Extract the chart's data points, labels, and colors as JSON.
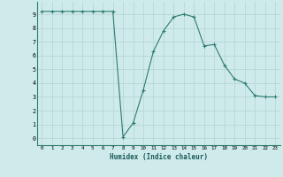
{
  "x": [
    0,
    1,
    2,
    3,
    4,
    5,
    6,
    7,
    8,
    9,
    10,
    11,
    12,
    13,
    14,
    15,
    16,
    17,
    18,
    19,
    20,
    21,
    22,
    23
  ],
  "y": [
    9.2,
    9.2,
    9.2,
    9.2,
    9.2,
    9.2,
    9.2,
    9.2,
    0.1,
    1.1,
    3.5,
    6.3,
    7.8,
    8.8,
    9.0,
    8.8,
    6.7,
    6.8,
    5.3,
    4.3,
    4.0,
    3.1,
    3.0,
    3.0
  ],
  "line_color": "#2e7d6e",
  "marker": "+",
  "marker_size": 3,
  "bg_color": "#ceeaea",
  "grid_color": "#b8d8d8",
  "xlabel": "Humidex (Indice chaleur)",
  "xlim": [
    -0.5,
    23.5
  ],
  "ylim": [
    -0.5,
    9.9
  ],
  "xtick_labels": [
    "0",
    "1",
    "2",
    "3",
    "4",
    "5",
    "6",
    "7",
    "8",
    "9",
    "10",
    "11",
    "12",
    "13",
    "14",
    "15",
    "16",
    "17",
    "18",
    "19",
    "20",
    "21",
    "22",
    "23"
  ],
  "ytick_labels": [
    "0",
    "1",
    "2",
    "3",
    "4",
    "5",
    "6",
    "7",
    "8",
    "9"
  ]
}
